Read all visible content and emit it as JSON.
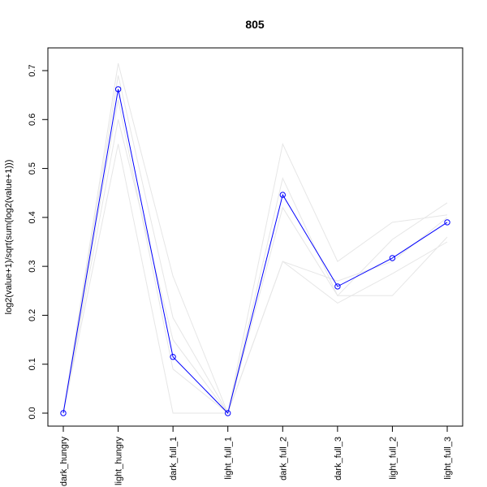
{
  "chart_data": {
    "type": "line",
    "title": "805",
    "xlabel": "",
    "ylabel": "log2(value+1)/sqrt(sum(log2(value+1)))",
    "categories": [
      "dark_hungry",
      "light_hungry",
      "dark_full_1",
      "light_full_1",
      "dark_full_2",
      "dark_full_3",
      "light_full_2",
      "light_full_3"
    ],
    "ylim": [
      0,
      0.7
    ],
    "yticks": [
      0.0,
      0.1,
      0.2,
      0.3,
      0.4,
      0.5,
      0.6,
      0.7
    ],
    "ytick_labels": [
      "0.0",
      "0.1",
      "0.2",
      "0.3",
      "0.4",
      "0.5",
      "0.6",
      "0.7"
    ],
    "grid": false,
    "series": [
      {
        "highlight": true,
        "color": "#0000ff",
        "marker": "open-circle",
        "values": [
          0.0,
          0.662,
          0.115,
          0.0,
          0.446,
          0.259,
          0.317,
          0.39
        ]
      }
    ],
    "background_series": [
      {
        "color": "#e6e6e6",
        "values": [
          0.0,
          0.715,
          0.28,
          0.0,
          0.55,
          0.31,
          0.39,
          0.405
        ]
      },
      {
        "color": "#e6e6e6",
        "values": [
          0.0,
          0.69,
          0.195,
          0.0,
          0.48,
          0.24,
          0.355,
          0.43
        ]
      },
      {
        "color": "#e6e6e6",
        "values": [
          0.0,
          0.55,
          0.0,
          0.0,
          0.31,
          0.225,
          0.285,
          0.35
        ]
      },
      {
        "color": "#e6e6e6",
        "values": [
          0.0,
          0.64,
          0.09,
          0.0,
          0.42,
          0.24,
          0.24,
          0.36
        ]
      },
      {
        "color": "#e6e6e6",
        "values": [
          0.0,
          0.6,
          0.15,
          0.0,
          0.31,
          0.27,
          0.31,
          0.4
        ]
      }
    ]
  }
}
